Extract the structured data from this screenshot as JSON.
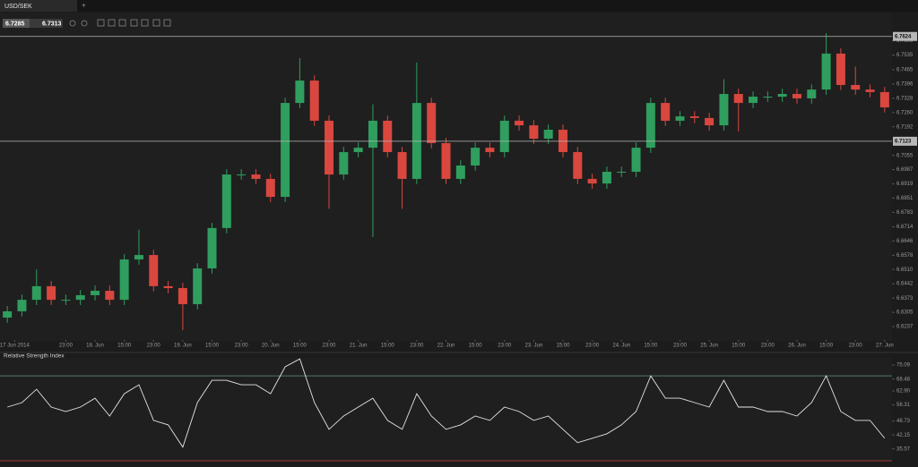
{
  "tab": "USD/SEK",
  "quote": {
    "bid": 6.7285,
    "ask": 6.7313
  },
  "chart_data": [
    {
      "type": "candlestick",
      "x": [
        -2,
        2,
        6,
        10,
        14,
        18,
        22,
        26,
        30,
        34,
        38,
        42,
        46,
        50,
        54,
        58,
        62,
        66,
        70,
        74,
        78,
        82,
        86,
        90,
        94,
        98,
        102,
        106,
        110,
        114,
        118,
        122,
        126,
        130,
        134,
        138,
        142,
        146,
        150,
        154,
        158,
        162,
        166,
        170,
        174,
        178,
        182,
        186,
        190,
        194,
        198,
        202,
        206,
        210,
        214,
        218,
        222,
        226,
        230,
        234,
        238
      ],
      "open": [
        6.628,
        6.631,
        6.6365,
        6.643,
        6.6365,
        6.6365,
        6.6387,
        6.6408,
        6.6365,
        6.6558,
        6.6579,
        6.643,
        6.6421,
        6.6344,
        6.6515,
        6.6708,
        6.6964,
        6.6964,
        6.6943,
        6.6857,
        6.7306,
        6.7413,
        6.7221,
        6.6964,
        6.7071,
        6.7092,
        6.7221,
        6.7071,
        6.6943,
        6.7306,
        6.7114,
        6.6943,
        6.7007,
        6.7092,
        6.7071,
        6.7221,
        6.7199,
        6.7135,
        6.7178,
        6.7071,
        6.6943,
        6.6921,
        6.6977,
        6.6977,
        6.7092,
        6.7306,
        6.7221,
        6.7242,
        6.7234,
        6.7199,
        6.7349,
        6.7306,
        6.7336,
        6.7336,
        6.7349,
        6.7328,
        6.737,
        6.7542,
        6.7392,
        6.737,
        6.7358
      ],
      "high": [
        6.6335,
        6.639,
        6.651,
        6.6455,
        6.639,
        6.6412,
        6.6433,
        6.6433,
        6.6583,
        6.67,
        6.6604,
        6.6455,
        6.6446,
        6.654,
        6.6733,
        6.6989,
        6.6989,
        6.6989,
        6.6968,
        6.7331,
        6.752,
        6.7438,
        6.7246,
        6.7096,
        6.7117,
        6.73,
        6.7246,
        6.7096,
        6.75,
        6.7331,
        6.7139,
        6.7032,
        6.7117,
        6.7117,
        6.7246,
        6.7246,
        6.7224,
        6.7203,
        6.7203,
        6.7096,
        6.6968,
        6.7002,
        6.7002,
        6.7117,
        6.7331,
        6.7331,
        6.7267,
        6.7267,
        6.7259,
        6.742,
        6.7374,
        6.7361,
        6.7361,
        6.7374,
        6.7374,
        6.7395,
        6.764,
        6.7567,
        6.748,
        6.7395,
        6.7383
      ],
      "low": [
        6.6255,
        6.6285,
        6.634,
        6.634,
        6.634,
        6.634,
        6.6362,
        6.634,
        6.634,
        6.6533,
        6.6405,
        6.6396,
        6.622,
        6.6319,
        6.649,
        6.6683,
        6.6939,
        6.6918,
        6.6832,
        6.6832,
        6.7281,
        6.7196,
        6.68,
        6.6939,
        6.7046,
        6.6665,
        6.7046,
        6.68,
        6.6918,
        6.7089,
        6.6918,
        6.6918,
        6.6982,
        6.7046,
        6.7046,
        6.7174,
        6.711,
        6.711,
        6.7046,
        6.6918,
        6.6896,
        6.6896,
        6.6952,
        6.6952,
        6.7067,
        6.7196,
        6.7196,
        6.7209,
        6.7174,
        6.7174,
        6.717,
        6.7281,
        6.7311,
        6.7311,
        6.7303,
        6.7303,
        6.7345,
        6.7367,
        6.7345,
        6.7333,
        6.726
      ],
      "close": [
        6.631,
        6.6365,
        6.643,
        6.6365,
        6.6365,
        6.6387,
        6.6408,
        6.6365,
        6.6558,
        6.6579,
        6.643,
        6.6421,
        6.6344,
        6.6515,
        6.6708,
        6.6964,
        6.6964,
        6.6943,
        6.6857,
        6.7306,
        6.7413,
        6.7221,
        6.6964,
        6.7071,
        6.7092,
        6.7221,
        6.7071,
        6.6943,
        6.7306,
        6.7114,
        6.6943,
        6.7007,
        6.7092,
        6.7071,
        6.7221,
        6.7199,
        6.7135,
        6.7178,
        6.7071,
        6.6943,
        6.6921,
        6.6977,
        6.6977,
        6.7092,
        6.7306,
        6.7221,
        6.7242,
        6.7234,
        6.7199,
        6.7349,
        6.7306,
        6.7336,
        6.7336,
        6.7349,
        6.7328,
        6.737,
        6.7542,
        6.7392,
        6.737,
        6.7358,
        6.7285
      ],
      "up_color": "#2f9e5e",
      "down_color": "#d9473f",
      "xlim": [
        -4,
        240
      ],
      "xticks": [
        {
          "value": 0,
          "label": "17 Jun 2014"
        },
        {
          "value": 14,
          "label": "23:00"
        },
        {
          "value": 22,
          "label": "18. Jun"
        },
        {
          "value": 30,
          "label": "15:00"
        },
        {
          "value": 38,
          "label": "23:00"
        },
        {
          "value": 46,
          "label": "19. Jun"
        },
        {
          "value": 54,
          "label": "15:00"
        },
        {
          "value": 62,
          "label": "23:00"
        },
        {
          "value": 70,
          "label": "20. Jun"
        },
        {
          "value": 78,
          "label": "15:00"
        },
        {
          "value": 86,
          "label": "23:00"
        },
        {
          "value": 94,
          "label": "21. Jun"
        },
        {
          "value": 102,
          "label": "15:00"
        },
        {
          "value": 110,
          "label": "23:00"
        },
        {
          "value": 118,
          "label": "22. Jun"
        },
        {
          "value": 126,
          "label": "15:00"
        },
        {
          "value": 134,
          "label": "23:00"
        },
        {
          "value": 142,
          "label": "23. Jun"
        },
        {
          "value": 150,
          "label": "15:00"
        },
        {
          "value": 158,
          "label": "23:00"
        },
        {
          "value": 166,
          "label": "24. Jun"
        },
        {
          "value": 174,
          "label": "15:00"
        },
        {
          "value": 182,
          "label": "23:00"
        },
        {
          "value": 190,
          "label": "25. Jun"
        },
        {
          "value": 198,
          "label": "15:00"
        },
        {
          "value": 206,
          "label": "23:00"
        },
        {
          "value": 214,
          "label": "26. Jun"
        },
        {
          "value": 222,
          "label": "15:00"
        },
        {
          "value": 230,
          "label": "23:00"
        },
        {
          "value": 238,
          "label": "27. Jun"
        }
      ],
      "ylim": [
        6.6173,
        6.7734
      ],
      "yticks": [
        6.7603,
        6.7535,
        6.7465,
        6.7396,
        6.7328,
        {
          "value": 6.726,
          "label": "6.7260"
        },
        6.7192,
        6.7055,
        6.6987,
        6.6919,
        6.6851,
        6.6783,
        6.6714,
        6.6646,
        6.6578,
        {
          "value": 6.651,
          "label": "6.6510"
        },
        6.6442,
        6.6373,
        6.6305,
        6.6237
      ],
      "hlines": [
        6.7624,
        6.7123
      ],
      "hline_color": "#b8b8b8"
    },
    {
      "type": "line",
      "title": "Relative Strength Index",
      "x": [
        -2,
        2,
        6,
        10,
        14,
        18,
        22,
        26,
        30,
        34,
        38,
        42,
        46,
        50,
        54,
        58,
        62,
        66,
        70,
        74,
        78,
        82,
        86,
        90,
        94,
        98,
        102,
        106,
        110,
        114,
        118,
        122,
        126,
        130,
        134,
        138,
        142,
        146,
        150,
        154,
        158,
        162,
        166,
        170,
        174,
        178,
        182,
        186,
        190,
        194,
        198,
        202,
        206,
        210,
        214,
        218,
        222,
        226,
        230,
        234,
        238
      ],
      "values": [
        55.3,
        57.4,
        63.7,
        55.3,
        53.2,
        55.3,
        59.5,
        51.1,
        61.6,
        65.8,
        49.0,
        46.9,
        36.4,
        57.4,
        67.9,
        67.9,
        65.8,
        65.8,
        61.6,
        74.3,
        78.0,
        57.4,
        44.8,
        51.1,
        55.3,
        59.5,
        49.0,
        44.8,
        61.6,
        51.1,
        44.8,
        46.9,
        51.1,
        49.0,
        55.3,
        53.2,
        49.0,
        51.1,
        44.8,
        38.5,
        40.6,
        42.7,
        46.9,
        53.2,
        70.0,
        59.5,
        59.5,
        57.4,
        55.3,
        67.9,
        55.3,
        55.3,
        53.2,
        53.2,
        51.1,
        57.4,
        70.0,
        53.2,
        49.0,
        49.0,
        40.6
      ],
      "color": "#e4e4e4",
      "xlim": [
        -4,
        240
      ],
      "ylim": [
        30,
        78.5
      ],
      "yticks": [
        75.09,
        68.48,
        {
          "value": 62.9,
          "label": "62.90"
        },
        56.31,
        48.73,
        42.15,
        35.57
      ],
      "levels": [
        {
          "value": 70,
          "color": "#4f7a5c"
        },
        {
          "value": 30,
          "color": "#a23a34"
        }
      ]
    }
  ]
}
